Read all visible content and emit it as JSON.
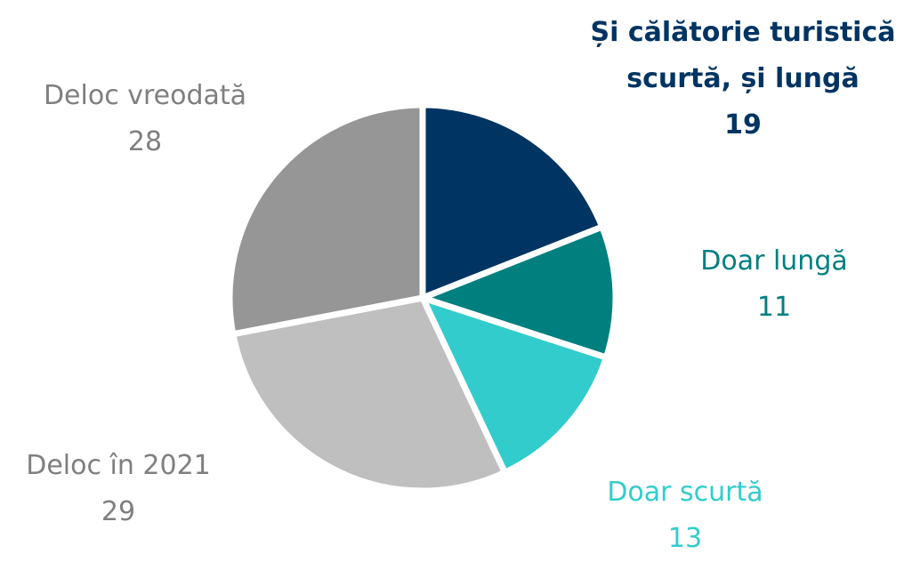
{
  "chart_data": {
    "type": "pie",
    "categories": [
      "Și călătorie turistică scurtă, și lungă",
      "Doar lungă",
      "Doar scurtă",
      "Deloc în 2021",
      "Deloc vreodată"
    ],
    "values": [
      19,
      11,
      13,
      29,
      28
    ],
    "colors": [
      "#003462",
      "#007f7f",
      "#33cccc",
      "#bfbfbf",
      "#969696"
    ]
  }
}
